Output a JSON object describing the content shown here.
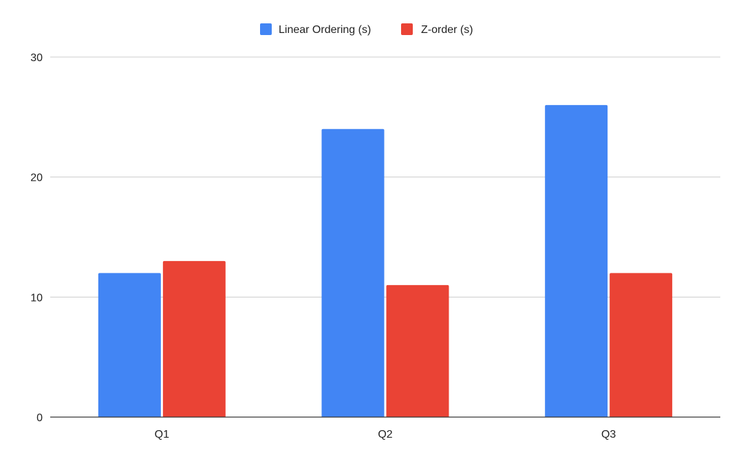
{
  "chart_data": {
    "type": "bar",
    "title": "",
    "xlabel": "",
    "ylabel": "",
    "categories": [
      "Q1",
      "Q2",
      "Q3"
    ],
    "series": [
      {
        "name": "Linear Ordering (s)",
        "values": [
          12,
          24,
          26
        ],
        "color": "#4285F4"
      },
      {
        "name": "Z-order (s)",
        "values": [
          13,
          11,
          12
        ],
        "color": "#EA4335"
      }
    ],
    "ylim": [
      0,
      30
    ],
    "yticks": [
      0,
      10,
      20,
      30
    ],
    "grid": true,
    "legend_position": "top-center"
  }
}
